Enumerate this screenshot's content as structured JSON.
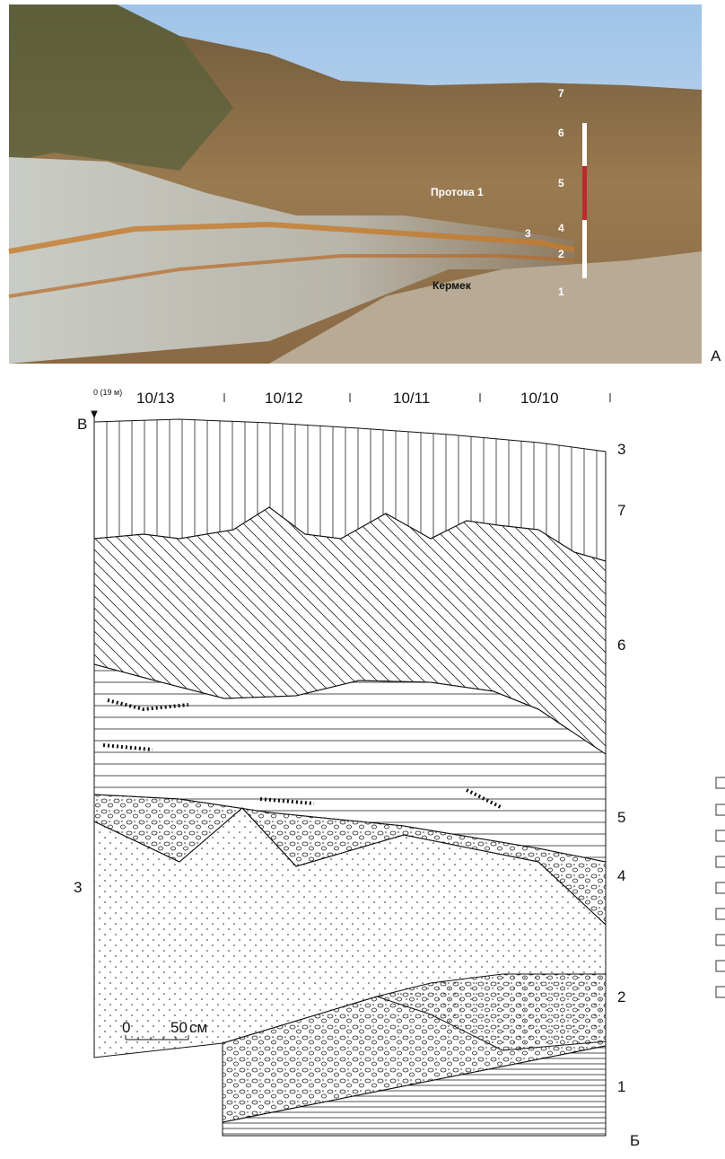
{
  "photo": {
    "scale_labels": [
      "7",
      "6",
      "5",
      "4",
      "3",
      "2",
      "1"
    ],
    "names": [
      "Протока 1",
      "Кермек"
    ],
    "panel_label": "А"
  },
  "section": {
    "squares": [
      "10/13",
      "10/12",
      "10/11",
      "10/10"
    ],
    "datum": "0 (19 м)",
    "corner_label": "В",
    "layer_labels": [
      "3",
      "7",
      "6",
      "5",
      "4",
      "2",
      "1"
    ],
    "left_label": "3",
    "scale": [
      "0",
      "50",
      "см"
    ],
    "end_label": "Б"
  }
}
